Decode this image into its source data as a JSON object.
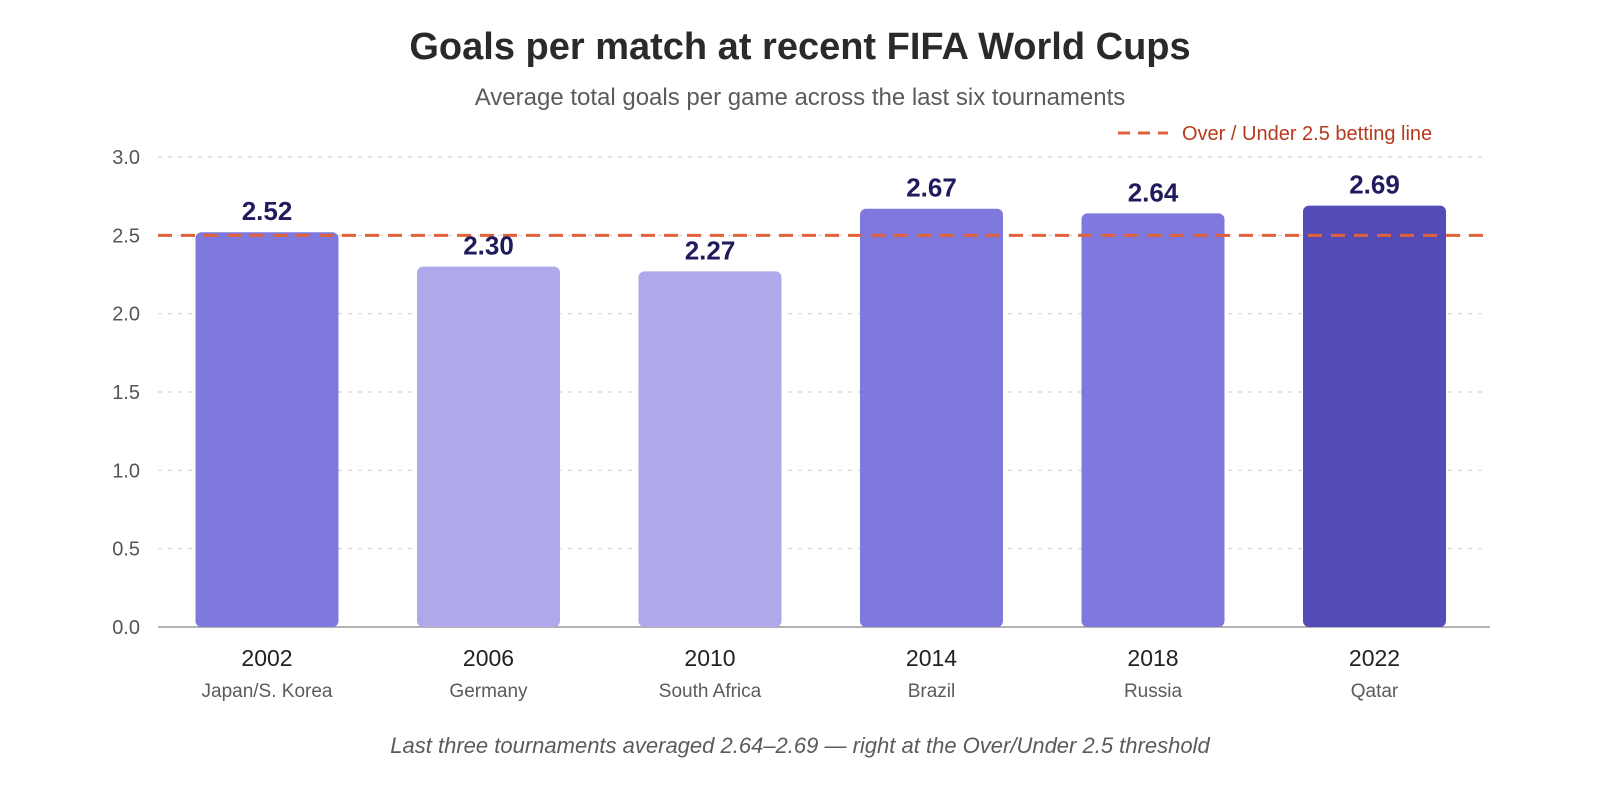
{
  "header": {
    "title": "Goals per match at recent FIFA World Cups",
    "subtitle": "Average total goals per game across the last six tournaments"
  },
  "footnote": "Last three tournaments averaged 2.64–2.69 — right at the Over/Under 2.5 threshold",
  "colors": {
    "bar_light": "#afa8ea",
    "bar_medium": "#7f78dd",
    "bar_dark": "#544bb7",
    "threshold_line": "#e0623a",
    "threshold_text": "#b5391c",
    "value_label": "#1f1b5c"
  },
  "chart_data": {
    "type": "bar",
    "title": "Goals per match at recent FIFA World Cups",
    "subtitle": "Average total goals per game across the last six tournaments",
    "xlabel": "",
    "ylabel": "",
    "ylim": [
      0,
      3.0
    ],
    "yticks": [
      "0.0",
      "0.5",
      "1.0",
      "1.5",
      "2.0",
      "2.5",
      "3.0"
    ],
    "grid": true,
    "categories": [
      "2002",
      "2006",
      "2010",
      "2014",
      "2018",
      "2022"
    ],
    "hosts": [
      "Japan/S. Korea",
      "Germany",
      "South Africa",
      "Brazil",
      "Russia",
      "Qatar"
    ],
    "values": [
      2.52,
      2.3,
      2.27,
      2.67,
      2.64,
      2.69
    ],
    "value_labels": [
      "2.52",
      "2.30",
      "2.27",
      "2.67",
      "2.64",
      "2.69"
    ],
    "bar_shades": [
      "medium",
      "light",
      "light",
      "medium",
      "medium",
      "dark"
    ],
    "reference_line": {
      "value": 2.5,
      "label": "Over / Under 2.5 betting line",
      "style": "dashed"
    },
    "legend_position": "top-right"
  }
}
